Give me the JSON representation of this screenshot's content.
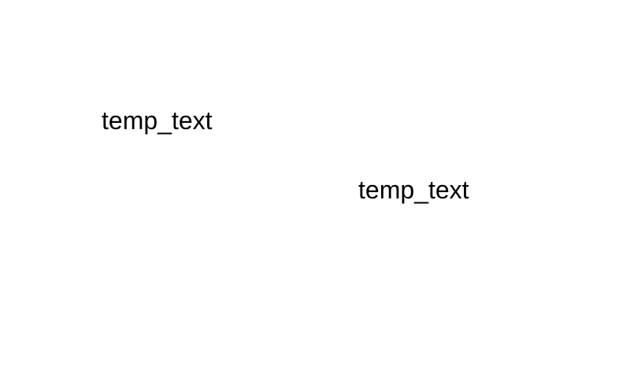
{
  "screen": {
    "background_color": "#ffffff",
    "text_color": "#000000"
  },
  "labels": [
    {
      "text": "temp_text"
    },
    {
      "text": "temp_text"
    }
  ]
}
